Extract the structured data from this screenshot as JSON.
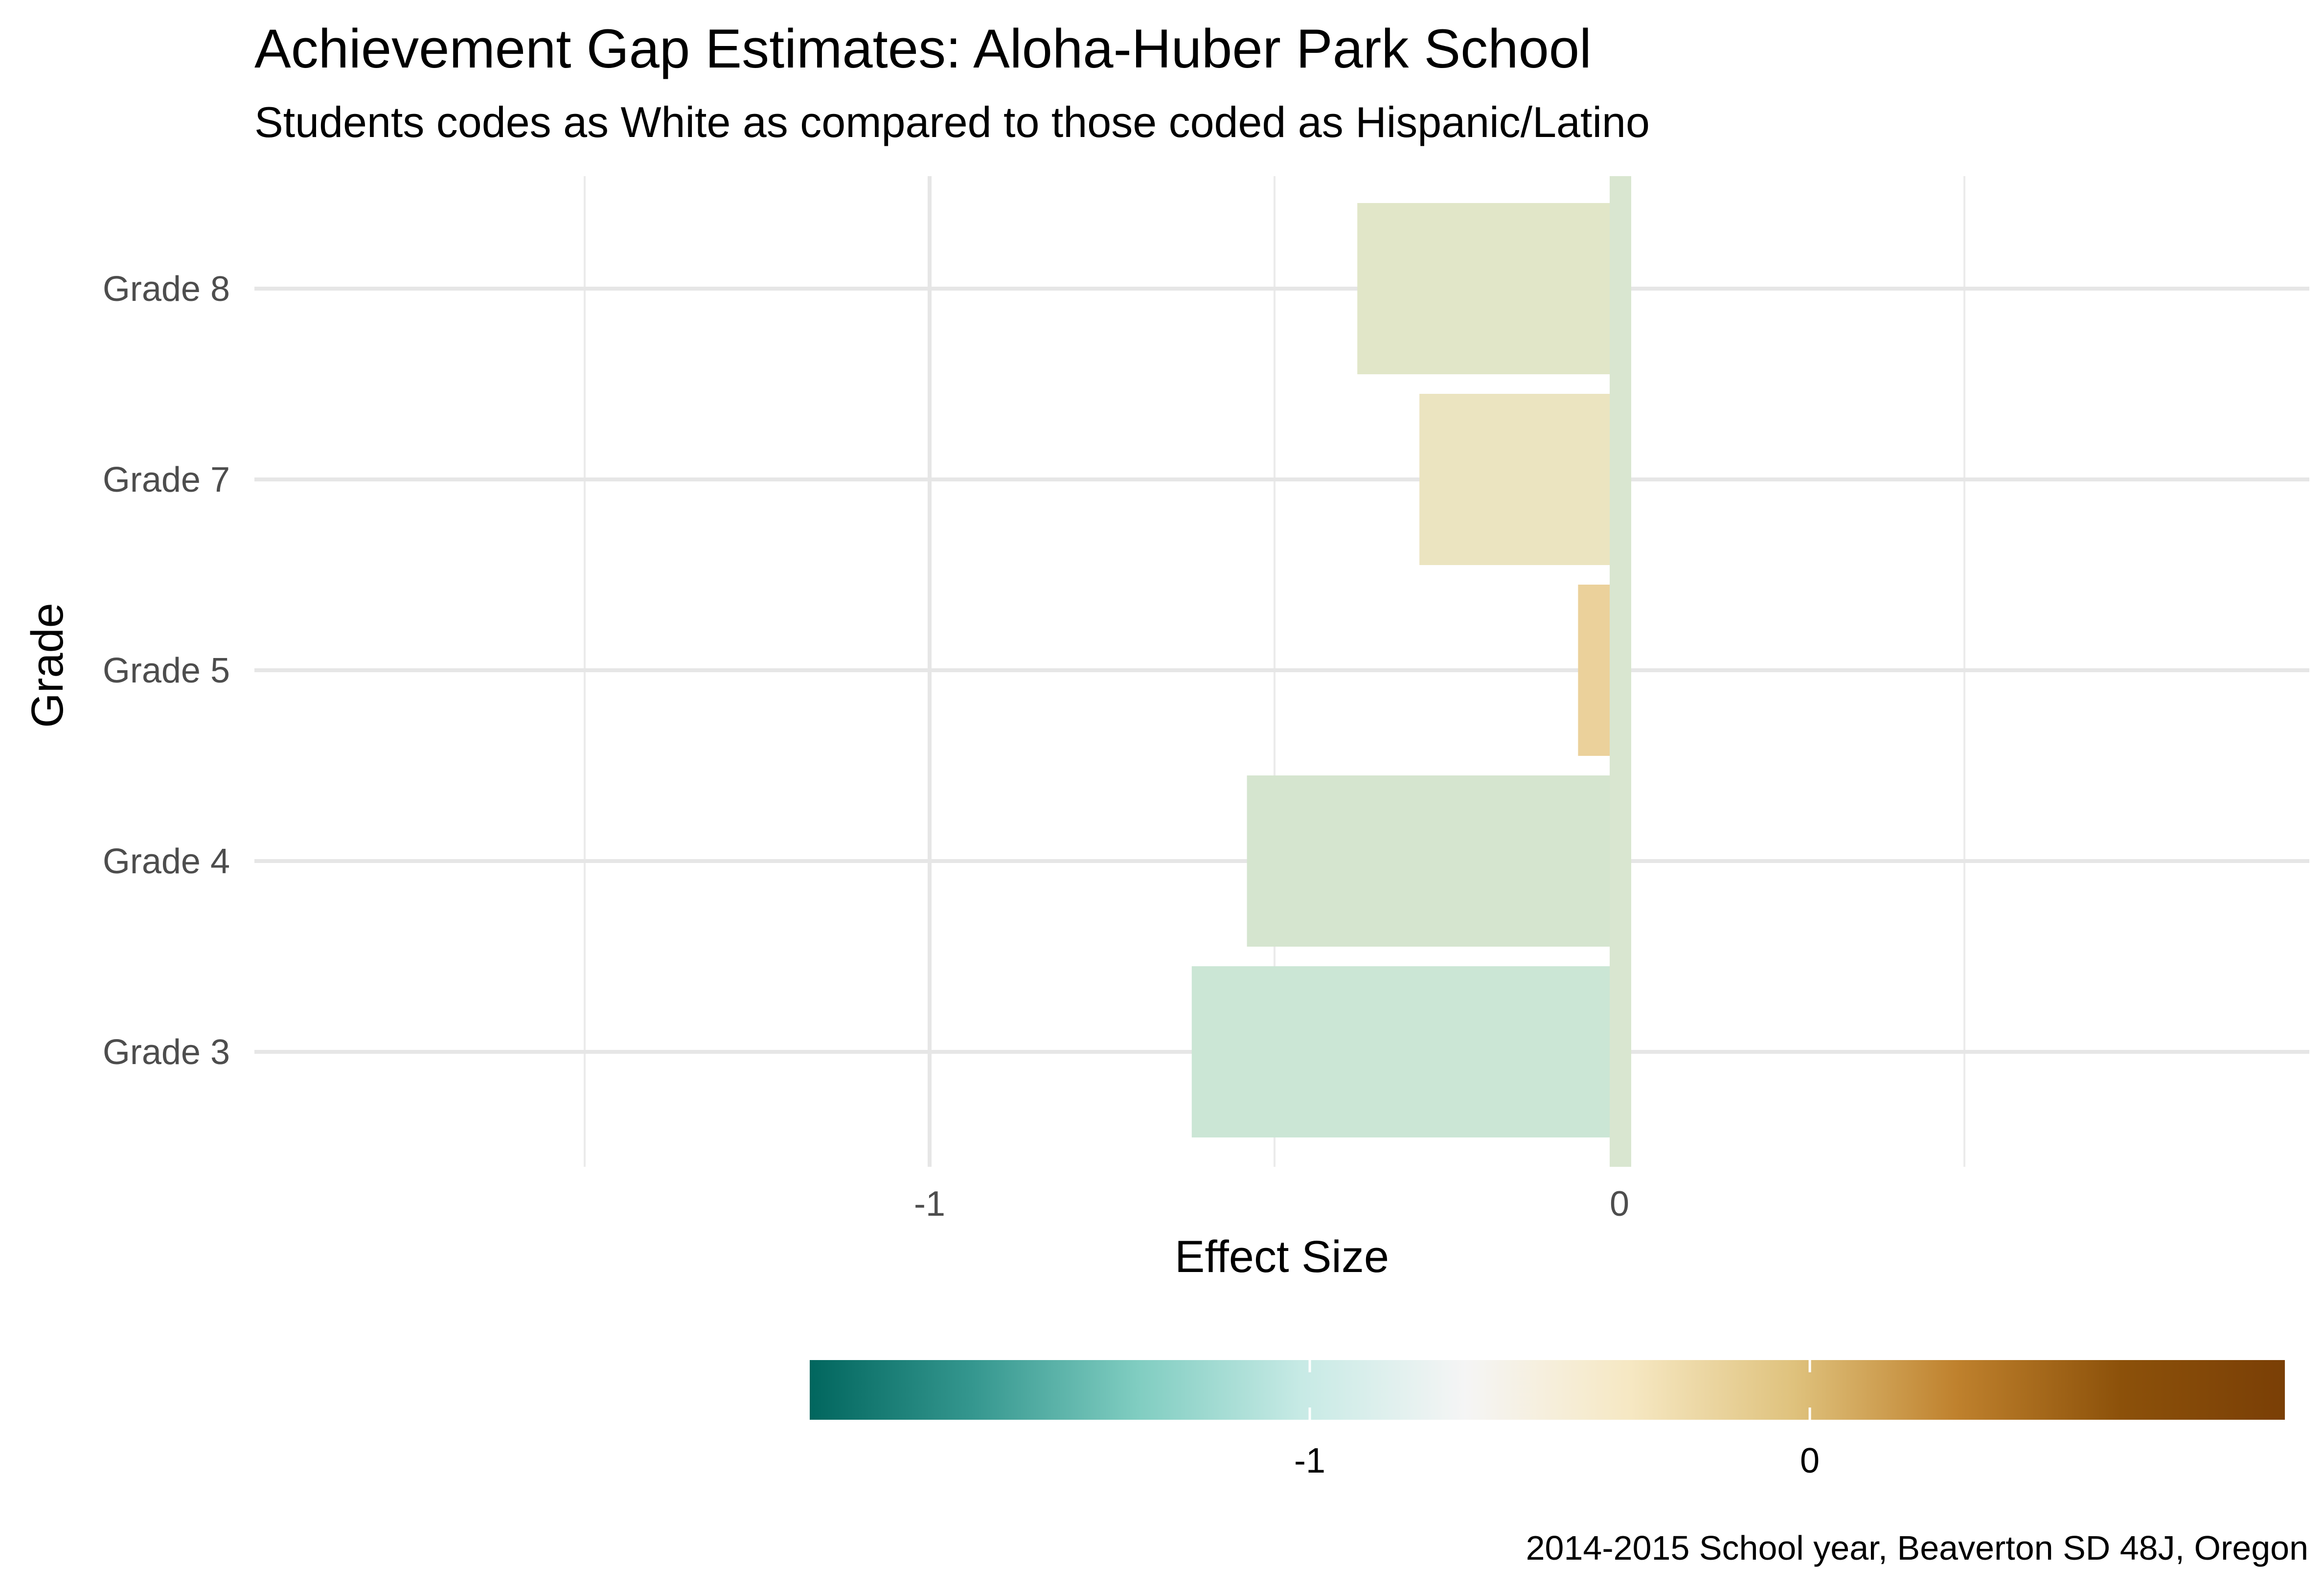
{
  "chart_data": {
    "type": "bar",
    "orientation": "horizontal",
    "title": "Achievement Gap Estimates: Aloha-Huber Park School",
    "subtitle": "Students codes as White as compared to those coded as Hispanic/Latino",
    "xlabel": "Effect Size",
    "ylabel": "Grade",
    "caption": "2014-2015 School year, Beaverton SD 48J, Oregon",
    "categories": [
      "Grade 3",
      "Grade 4",
      "Grade 5",
      "Grade 7",
      "Grade 8"
    ],
    "values": [
      -0.62,
      -0.54,
      -0.06,
      -0.29,
      -0.38
    ],
    "xlim": [
      -1.5,
      1
    ],
    "x_ticks": [
      {
        "value": -1,
        "label": "-1"
      },
      {
        "value": 0,
        "label": "0"
      }
    ],
    "zero_line": {
      "value": 0,
      "color": "#d9e6d0"
    },
    "grid": true,
    "legend": {
      "position": "bottom",
      "type": "colorbar",
      "range": [
        -2,
        0.95
      ],
      "ticks": [
        {
          "value": -1,
          "label": "-1"
        },
        {
          "value": 0,
          "label": "0"
        }
      ],
      "palette": [
        "#01665e",
        "#35978f",
        "#80cdc1",
        "#c7eae5",
        "#f5f5f5",
        "#f6e8c3",
        "#dfc27d",
        "#bf812d",
        "#8c510a",
        "#7a3f06"
      ]
    },
    "bar_colors": [
      "#cbe6d5",
      "#d5e5cf",
      "#ebd19b",
      "#ebe4c0",
      "#e1e6c8"
    ]
  }
}
